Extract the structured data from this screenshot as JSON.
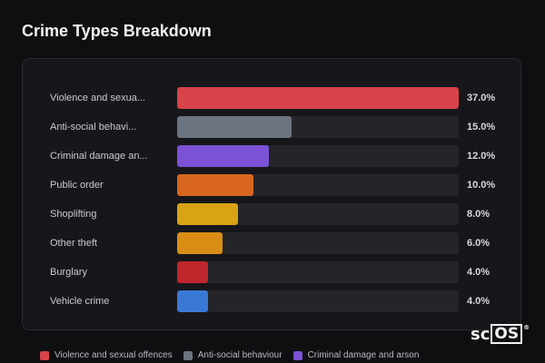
{
  "chart_data": {
    "type": "bar",
    "orientation": "horizontal",
    "title": "Crime Types Breakdown",
    "xlim": [
      0,
      37
    ],
    "categories": [
      "Violence and sexual offences",
      "Anti-social behaviour",
      "Criminal damage and arson",
      "Public order",
      "Shoplifting",
      "Other theft",
      "Burglary",
      "Vehicle crime"
    ],
    "display_labels": [
      "Violence and sexua...",
      "Anti-social behavi...",
      "Criminal damage an...",
      "Public order",
      "Shoplifting",
      "Other theft",
      "Burglary",
      "Vehicle crime"
    ],
    "values": [
      37.0,
      15.0,
      12.0,
      10.0,
      8.0,
      6.0,
      4.0,
      4.0
    ],
    "value_labels": [
      "37.0%",
      "15.0%",
      "12.0%",
      "10.0%",
      "8.0%",
      "6.0%",
      "4.0%",
      "4.0%"
    ],
    "colors": [
      "#d9434a",
      "#6b7480",
      "#7b52d6",
      "#d8661f",
      "#d8a314",
      "#d98d15",
      "#c0262b",
      "#3a78d6"
    ],
    "legend": {
      "placement": "bottom",
      "entries": [
        {
          "label": "Violence and sexual offences",
          "color": "#d9434a"
        },
        {
          "label": "Anti-social behaviour",
          "color": "#6b7480"
        },
        {
          "label": "Criminal damage and arson",
          "color": "#7b52d6"
        }
      ]
    }
  },
  "logo": {
    "text_plain": "sc",
    "text_boxed": "OS",
    "mark": "®"
  }
}
